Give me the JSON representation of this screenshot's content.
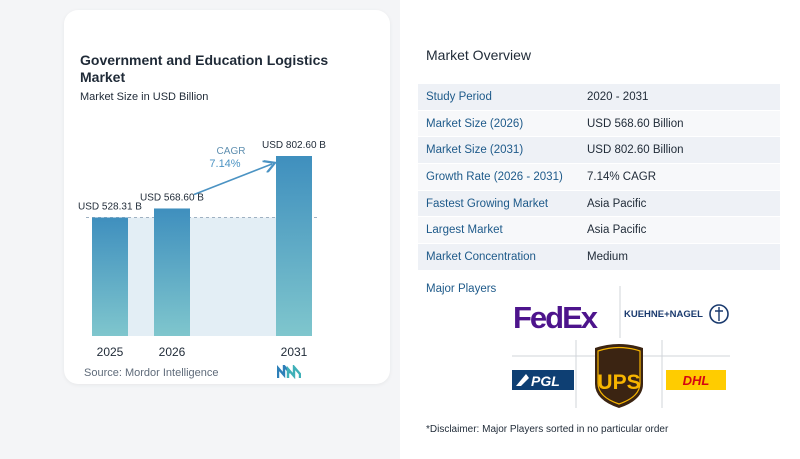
{
  "chart_data": {
    "type": "bar",
    "title": "Government and Education Logistics Market",
    "subtitle": "Market Size in USD Billion",
    "categories": [
      "2025",
      "2026",
      "2031"
    ],
    "values": [
      528.31,
      568.6,
      802.6
    ],
    "data_labels": [
      "USD 528.31 B",
      "USD 568.60 B",
      "USD 802.60 B"
    ],
    "cagr_label": "CAGR",
    "cagr_value": "7.14%",
    "ylim": [
      0,
      802.6
    ],
    "grid": false,
    "bar_color_top": "#3f8fbe",
    "bar_color_bottom": "#7fc6cd"
  },
  "source": "Source: Mordor Intelligence",
  "overview": {
    "title": "Market Overview",
    "rows": [
      {
        "label": "Study Period",
        "value": "2020 - 2031"
      },
      {
        "label": "Market Size (2026)",
        "value": "USD 568.60 Billion"
      },
      {
        "label": "Market Size (2031)",
        "value": "USD 802.60 Billion"
      },
      {
        "label": "Growth Rate (2026 - 2031)",
        "value": "7.14% CAGR"
      },
      {
        "label": "Fastest Growing Market",
        "value": "Asia Pacific"
      },
      {
        "label": "Largest Market",
        "value": "Asia Pacific"
      },
      {
        "label": "Market Concentration",
        "value": "Medium"
      }
    ]
  },
  "major_players": {
    "title": "Major Players",
    "logos": [
      "FedEx",
      "KUEHNE+NAGEL",
      "PGL",
      "UPS",
      "DHL"
    ]
  },
  "disclaimer": "*Disclaimer: Major Players sorted in no particular order"
}
